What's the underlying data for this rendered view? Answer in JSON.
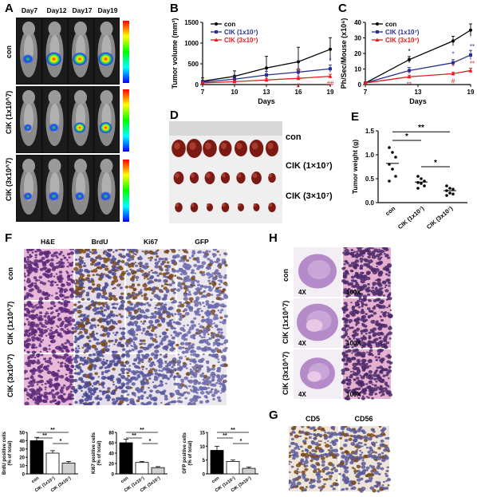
{
  "panels": {
    "A": "A",
    "B": "B",
    "C": "C",
    "D": "D",
    "E": "E",
    "F": "F",
    "G": "G",
    "H": "H"
  },
  "panelA": {
    "days": [
      "Day7",
      "Day12",
      "Day17",
      "Day19"
    ],
    "rows": [
      "con",
      "CIK (1x10^7)",
      "CIK (3x10^7)"
    ],
    "colorbar": "blue-to-red luminescence scale"
  },
  "chart_data": [
    {
      "id": "B",
      "type": "line",
      "ylabel": "Tumor volume (mm³)",
      "xlabel": "Days",
      "x": [
        7,
        10,
        13,
        16,
        19
      ],
      "xlim": [
        7,
        19
      ],
      "ylim": [
        0,
        1500
      ],
      "yticks": [
        0,
        500,
        1000,
        1500
      ],
      "series": [
        {
          "name": "con",
          "color": "#000000",
          "values": [
            80,
            200,
            400,
            550,
            850
          ],
          "err": [
            80,
            130,
            280,
            350,
            280
          ]
        },
        {
          "name": "CIK (1x10⁷)",
          "color": "#2b2f8f",
          "values": [
            60,
            130,
            230,
            300,
            380
          ],
          "err": [
            40,
            70,
            90,
            80,
            90
          ]
        },
        {
          "name": "CIK (3x10⁷)",
          "color": "#e41a1c",
          "values": [
            40,
            70,
            110,
            150,
            200
          ],
          "err": [
            20,
            30,
            40,
            40,
            50
          ]
        }
      ],
      "annotations": [
        "*",
        "**",
        "##",
        "*",
        "#"
      ]
    },
    {
      "id": "C",
      "type": "line",
      "ylabel": "Ph/Sec/Mouse (x10⁶)",
      "xlabel": "Days",
      "x": [
        7,
        12,
        17,
        19
      ],
      "xlim": [
        7,
        19
      ],
      "ylim": [
        0,
        40
      ],
      "yticks": [
        0,
        10,
        20,
        30,
        40
      ],
      "series": [
        {
          "name": "con",
          "color": "#000000",
          "values": [
            1,
            16,
            28,
            35
          ],
          "err": [
            0.5,
            2,
            3,
            4
          ]
        },
        {
          "name": "CIK (1x10⁷)",
          "color": "#2b2f8f",
          "values": [
            1,
            9,
            14,
            19
          ],
          "err": [
            0.5,
            2,
            2,
            3
          ]
        },
        {
          "name": "CIK (3x10⁷)",
          "color": "#e41a1c",
          "values": [
            1,
            5,
            7,
            9
          ],
          "err": [
            0.5,
            1,
            1,
            1.5
          ]
        }
      ],
      "annotations": [
        "*",
        "**",
        "*",
        "*",
        "#",
        "**",
        "**"
      ]
    },
    {
      "id": "E",
      "type": "scatter",
      "ylabel": "Tumor weight (g)",
      "categories": [
        "con",
        "CIK (1x10⁷)",
        "CIK (3x10⁷)"
      ],
      "ylim": [
        0,
        1.5
      ],
      "yticks": [
        0.0,
        0.5,
        1.0,
        1.5
      ],
      "points": [
        [
          1.15,
          1.05,
          0.95,
          0.8,
          0.7,
          0.55,
          0.45
        ],
        [
          0.55,
          0.5,
          0.45,
          0.42,
          0.4,
          0.35,
          0.3
        ],
        [
          0.35,
          0.3,
          0.28,
          0.25,
          0.2,
          0.18,
          0.15
        ]
      ],
      "means": [
        0.82,
        0.43,
        0.25
      ],
      "sig": [
        "*",
        "**",
        "*"
      ]
    },
    {
      "id": "F-BrdU",
      "type": "bar",
      "ylabel": "BrdU positive cells (% of total)",
      "categories": [
        "con",
        "CIK (1x10⁷)",
        "CIK (3x10⁷)"
      ],
      "values": [
        40,
        25,
        13
      ],
      "err": [
        4,
        3,
        2
      ],
      "ylim": [
        0,
        50
      ],
      "yticks": [
        0,
        10,
        20,
        30,
        40,
        50
      ],
      "sig": [
        "**",
        "**",
        "*"
      ]
    },
    {
      "id": "F-Ki67",
      "type": "bar",
      "ylabel": "Ki67 positive cells (% of total)",
      "categories": [
        "con",
        "CIK (1x10⁷)",
        "CIK (3x10⁷)"
      ],
      "values": [
        60,
        22,
        12
      ],
      "err": [
        7,
        2,
        2
      ],
      "ylim": [
        0,
        80
      ],
      "yticks": [
        0,
        20,
        40,
        60,
        80
      ],
      "sig": [
        "**",
        "**",
        "*"
      ]
    },
    {
      "id": "F-GFP",
      "type": "bar",
      "ylabel": "GFP positive cells (% of total)",
      "categories": [
        "con",
        "CIK (1x10⁷)",
        "CIK (3x10⁷)"
      ],
      "values": [
        8.5,
        4.5,
        2
      ],
      "err": [
        1.5,
        0.5,
        0.5
      ],
      "ylim": [
        0,
        15
      ],
      "yticks": [
        0,
        5,
        10,
        15
      ],
      "sig": [
        "**",
        "**",
        "*"
      ]
    }
  ],
  "panelD": {
    "rows": [
      "con",
      "CIK (1×10⁷)",
      "CIK (3×10⁷)"
    ]
  },
  "panelF": {
    "cols": [
      "H&E",
      "BrdU",
      "Ki67",
      "GFP"
    ],
    "rows": [
      "con",
      "CIK (1x10^7)",
      "CIK (3x10^7)"
    ]
  },
  "panelH": {
    "rows": [
      "con",
      "CIK (1x10^7)",
      "CIK (3x10^7)"
    ],
    "mag_left": "4X",
    "mag_right": "100X"
  },
  "panelG": {
    "cols": [
      "CD5",
      "CD56"
    ]
  }
}
